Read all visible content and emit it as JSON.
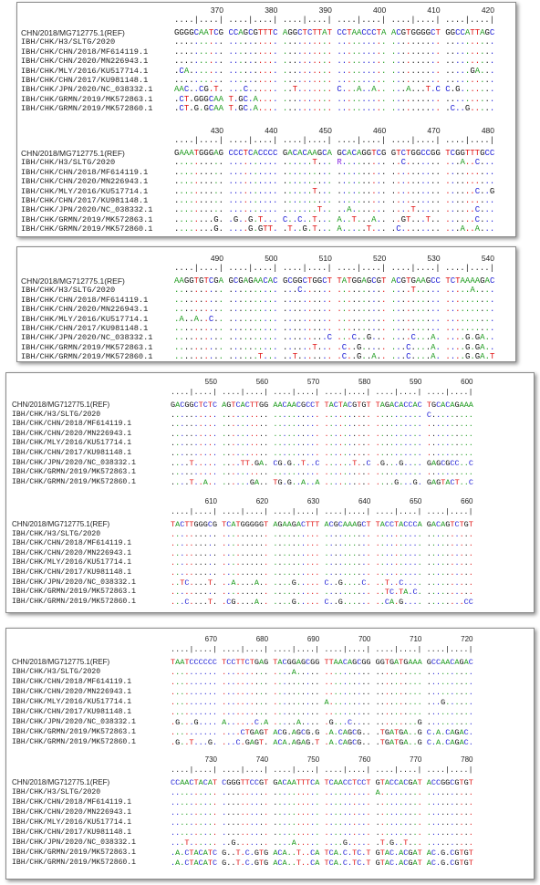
{
  "names": [
    "CHN/2018/MG712775.1(REF)",
    "IBH/CHK/H3/SLTG/2020",
    "IBH/CHK/CHN/2018/MF614119.1",
    "IBH/CHK/CHN/2020/MN226943.1",
    "IBH/CHK/MLY/2016/KU517714.1",
    "IBH/CHK/CHN/2017/KU981148.1",
    "IBH/CHK/JPN/2020/NC_038332.1",
    "IBH/CHK/GRMN/2019/MK572863.1",
    "IBH/CHK/GRMN/2019/MK572860.1"
  ],
  "ruler": "....|....| ....|....| ....|....| ....|....| ....|....| ....|....|",
  "panels": [
    {
      "blocks": [
        {
          "ticks": [
            370,
            380,
            390,
            400,
            410,
            420
          ],
          "rows": [
            "GGGGCAATCG CCAGCGTTTC AGGCTCTTAT CCTAACCCTA ACGTGGGGCT GGCCATTAGC",
            ".......... .......... .......... .......... .......... ..........",
            ".......... .......... .......... .......... .......... ..........",
            ".......... .......... .......... .......... .......... ..........",
            ".CA....... .......... .......... .......... .......... .....GA...",
            ".......... .......... .......... .......... .......... ..........",
            "AAC..CG.T. ...C...... ..T....... C...A..A.. ...A...T.C C.G.......",
            ".CT.GGGCAA T.GC.A.... .......... .......... .......... ..........",
            ".CT.G.GCAA T.GC.A.... .......... .......... .......... .C..G....."
          ]
        },
        {
          "ticks": [
            430,
            440,
            450,
            460,
            470,
            480
          ],
          "rows": [
            "GAAATGGGAG CCCTCACCCC GACACAAGCA GCACAGGTCG GTCTGGCCGG TCGGTTTGCC",
            ".......... .......... ......T... R......... ..C....... ...A..C...",
            ".......... .......... .......... .......... .......... ..........",
            ".......... .......... .......... .......... .......... ..........",
            ".......... .......... ......T... .......... .......... ......C..G",
            ".......... .......... .......... .......... .......... ..........",
            ".......... .......... .......T.. ..A....... ....T..... ......C...",
            "........G. .G..G.T... C..C..T... A..T...A.. ..GT...T.. ......C...",
            "........G. ....G.GTT. .T..G.T... A.....T... .C........ ...A..A..."
          ]
        }
      ]
    },
    {
      "blocks": [
        {
          "ticks": [
            490,
            500,
            510,
            520,
            530,
            540
          ],
          "rows": [
            "AAGGTGTCGA GCGAGAACAC GCGGCTGGCT TATGGAGCGT ACGTGAAGCC TCTAAAAGAC",
            ".......... .......... ...C...... .......... ....T..... .....A....",
            ".......... .......... .......... .......... .......... ..........",
            ".......... .......... .......... .......... .......... ..........",
            ".A..A..C.. .......... .......... .......... .......... ..........",
            ".......... .......... .......... .......... .......... ..........",
            ".......... .......... .........C ...C..G... ....C...A. ....G.GA..",
            ".......... .......... ......T... .C..G..... ...C....A. ....G.GA..",
            ".......... ......T... ..T....... .C..G..A.. ...C....A. ....G.GA.T"
          ]
        }
      ]
    },
    {
      "blocks": [
        {
          "ticks": [
            550,
            560,
            570,
            580,
            590,
            600
          ],
          "rows": [
            "GACGGCTCTC AGTCACTTGG AACAACGCCT TACTACGTGT TAGACACCAC TGCACAGAAA",
            ".......... .......... .......... .......... .......... C.........",
            ".......... .......... .......... .......... .......... ..........",
            ".......... .......... .......... .......... .......... ..........",
            ".......... .......... .......... .......... .......... ..........",
            ".......... .......... .......... .......... .......... ..........",
            "....T..... ....TT.GA. CG.G..T..C ......T..C .G...G.... GAGCGCC..C",
            ".......... .......... .......... .......... .......... ..........",
            "....T..A.. ......GA.. TG.G..A..A .......... ....G...G. GAGTACT..C"
          ]
        },
        {
          "ticks": [
            610,
            620,
            630,
            640,
            650,
            660
          ],
          "rows": [
            "TACTTGGGCG TCATGGGGGT AGAAGACTTT ACGCAAAGCT TACCTACCCA GACAGTCTGT",
            ".......... .......... .......... .......... .......... ..........",
            ".......... .......... .......... .......... .......... ..........",
            ".......... .......... .......... .......... .......... ..........",
            ".......... .......... .......... .......... .......... ..........",
            ".......... .......... .......... .......... .......... ..........",
            "..TC....T. ..A....A.. ....G..... C..G....C. ..T..C.... ..........",
            ".......... .......... .......... .......... ..TC.TA.C. ..........",
            "...C....T. .CG....A.. ....G..... C..G...... ..CA.G.... ........CC"
          ]
        }
      ]
    },
    {
      "blocks": [
        {
          "ticks": [
            670,
            680,
            690,
            700,
            710,
            720
          ],
          "rows": [
            "TAATCCCCCC TCCTTCTGAG TACGGAGCGG TTAACAGCGG GGTGATGAAA GCCAACAGAC",
            ".......... .......... ....A..... .......... .......... ..........",
            ".......... .......... .......... .......... .......... ..........",
            ".......... .......... .......... .......... .......... ..........",
            ".......... .......... .......... A......... .......... ...G......",
            ".......... .......... .......... .......... .......... ..........",
            ".G...G.... A......C.A .....A.... .G...C.... .........G ..........",
            ".......... ....CTGAGT ACG.AGCG.G .A.CAGCG.. .TGATGA..G C.A.CAGAC.",
            ".G..T...G. ...C.GAGT. ACA.AGAG.T .A.CAGCG.. .TGATGA..G C.A.CAGAC."
          ]
        },
        {
          "ticks": [
            730,
            740,
            750,
            760,
            770,
            780
          ],
          "rows": [
            "CCAACTACAT CGGGTTCCGT GACAATTTCA TCAACCTCCT GTACCACGAT ACCGGCGTGT",
            ".......... .......... .......... .......... A......... ..........",
            ".......... .......... .......... .......... .......... ..........",
            ".......... .......... .......... .......... .......... ..........",
            ".......... .......... .......... .......... .......... ..........",
            ".......... .......... .......... .......... .......... ..........",
            "...T...... ..G....... ....A..... ....G..... .T.G..T... ..........",
            ".A.CTACATC G..T.C.GTG ACA..T..CA TCA.C.TC.T GTAC.ACGAT AC.G.CGTGT",
            ".A.CTACATC G..T.C.GTG ACA..T..CA TCA.C.TC.T GTAC.ACGAT AC.G.CGTGT"
          ]
        }
      ]
    }
  ]
}
